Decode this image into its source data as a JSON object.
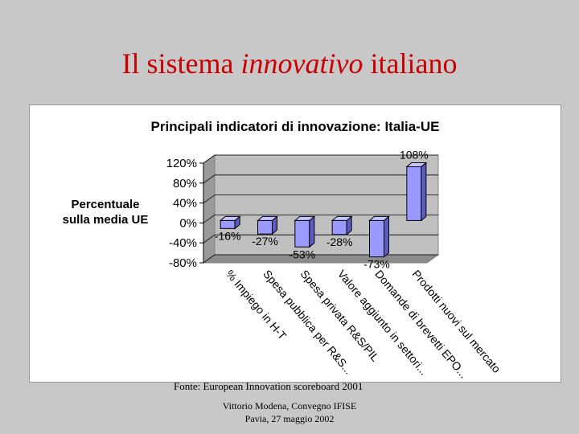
{
  "slide": {
    "title_part1": "Il sistema ",
    "title_italic": "innovativo",
    "title_part2": " italiano",
    "title_color": "#cc0000",
    "source": "Fonte: European Innovation scoreboard 2001",
    "author": "Vittorio Modena, Convegno IFISE",
    "date": "Pavia, 27 maggio 2002"
  },
  "chart_data": {
    "type": "bar",
    "title": "Principali indicatori di innovazione: Italia-UE",
    "ylabel": "Percentuale sulla media UE",
    "ylabel_lines": [
      "Percentuale",
      "sulla media UE"
    ],
    "categories": [
      "% Impiego in H-T",
      "Spesa pubblica per R&S...",
      "Spesa privata R&S/PIL",
      "Valore aggiunto in settori...",
      "Domande di brevetti EPO...",
      "Prodotti nuovi sul mercato"
    ],
    "values": [
      -16,
      -27,
      -53,
      -28,
      -73,
      108
    ],
    "data_labels": [
      "-16%",
      "-27%",
      "-53%",
      "-28%",
      "-73%",
      "108%"
    ],
    "yticks": [
      120,
      80,
      40,
      0,
      -40,
      -80
    ],
    "ytick_labels": [
      "120%",
      "80%",
      "40%",
      "0%",
      "-40%",
      "-80%"
    ],
    "ylim": [
      -80,
      120
    ],
    "grid": true,
    "legend": "none",
    "style": "3d-column",
    "bar_color": "#9999ff",
    "wall_color": "#c0c0c0"
  }
}
